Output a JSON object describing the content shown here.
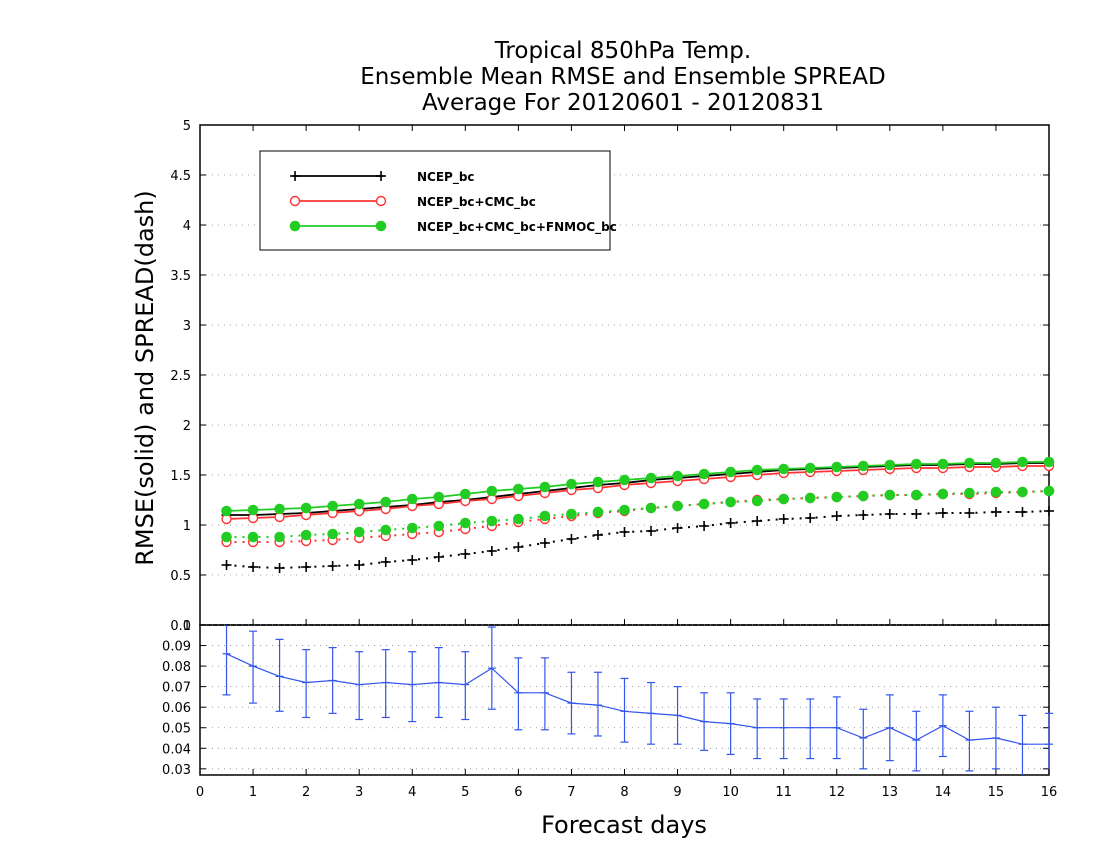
{
  "title_lines": [
    "Tropical 850hPa Temp.",
    "Ensemble Mean RMSE and Ensemble SPREAD",
    "Average For 20120601 - 20120831"
  ],
  "ylabel": "RMSE(solid) and SPREAD(dash)",
  "xlabel": "Forecast days",
  "chart_data": [
    {
      "type": "line",
      "x": [
        0.5,
        1.0,
        1.5,
        2.0,
        2.5,
        3.0,
        3.5,
        4.0,
        4.5,
        5.0,
        5.5,
        6.0,
        6.5,
        7.0,
        7.5,
        8.0,
        8.5,
        9.0,
        9.5,
        10.0,
        10.5,
        11.0,
        11.5,
        12.0,
        12.5,
        13.0,
        13.5,
        14.0,
        14.5,
        15.0,
        15.5,
        16.0
      ],
      "xlim": [
        0,
        16
      ],
      "ylim": [
        0,
        5
      ],
      "yticks": [
        0.5,
        1,
        1.5,
        2,
        2.5,
        3,
        3.5,
        4,
        4.5,
        5
      ],
      "xticks": [
        0,
        1,
        2,
        3,
        4,
        5,
        6,
        7,
        8,
        9,
        10,
        11,
        12,
        13,
        14,
        15,
        16
      ],
      "grid": true,
      "legend": {
        "position": "top-left",
        "entries": [
          "NCEP_bc",
          "NCEP_bc+CMC_bc",
          "NCEP_bc+CMC_bc+FNMOC_bc"
        ]
      },
      "series": [
        {
          "name": "NCEP_bc",
          "metric": "RMSE",
          "style": "solid",
          "marker": "plus",
          "color": "#000000",
          "values": [
            1.1,
            1.1,
            1.11,
            1.12,
            1.14,
            1.16,
            1.18,
            1.2,
            1.23,
            1.25,
            1.28,
            1.31,
            1.34,
            1.37,
            1.4,
            1.42,
            1.45,
            1.47,
            1.49,
            1.51,
            1.53,
            1.55,
            1.56,
            1.57,
            1.58,
            1.59,
            1.6,
            1.6,
            1.61,
            1.61,
            1.62,
            1.62
          ]
        },
        {
          "name": "NCEP_bc+CMC_bc",
          "metric": "RMSE",
          "style": "solid",
          "marker": "open-circle",
          "color": "#ff3333",
          "values": [
            1.06,
            1.07,
            1.08,
            1.1,
            1.12,
            1.14,
            1.16,
            1.19,
            1.21,
            1.24,
            1.26,
            1.29,
            1.32,
            1.35,
            1.37,
            1.4,
            1.42,
            1.44,
            1.46,
            1.48,
            1.5,
            1.52,
            1.53,
            1.54,
            1.55,
            1.56,
            1.57,
            1.57,
            1.58,
            1.58,
            1.59,
            1.59
          ]
        },
        {
          "name": "NCEP_bc+CMC_bc+FNMOC_bc",
          "metric": "RMSE",
          "style": "solid",
          "marker": "filled-circle",
          "color": "#22cc22",
          "values": [
            1.14,
            1.15,
            1.16,
            1.17,
            1.19,
            1.21,
            1.23,
            1.26,
            1.28,
            1.31,
            1.34,
            1.36,
            1.38,
            1.41,
            1.43,
            1.45,
            1.47,
            1.49,
            1.51,
            1.53,
            1.55,
            1.56,
            1.57,
            1.58,
            1.59,
            1.6,
            1.61,
            1.61,
            1.62,
            1.62,
            1.63,
            1.63
          ]
        },
        {
          "name": "NCEP_bc",
          "metric": "SPREAD",
          "style": "dash",
          "marker": "plus",
          "color": "#000000",
          "values": [
            0.6,
            0.58,
            0.57,
            0.58,
            0.59,
            0.6,
            0.63,
            0.65,
            0.68,
            0.71,
            0.74,
            0.78,
            0.82,
            0.86,
            0.9,
            0.93,
            0.94,
            0.97,
            0.99,
            1.02,
            1.04,
            1.06,
            1.07,
            1.09,
            1.1,
            1.11,
            1.11,
            1.12,
            1.12,
            1.13,
            1.13,
            1.14
          ]
        },
        {
          "name": "NCEP_bc+CMC_bc",
          "metric": "SPREAD",
          "style": "dash",
          "marker": "open-circle",
          "color": "#ff3333",
          "values": [
            0.83,
            0.83,
            0.83,
            0.84,
            0.85,
            0.87,
            0.89,
            0.91,
            0.93,
            0.96,
            0.99,
            1.03,
            1.06,
            1.09,
            1.12,
            1.14,
            1.17,
            1.19,
            1.21,
            1.23,
            1.25,
            1.26,
            1.27,
            1.28,
            1.29,
            1.3,
            1.3,
            1.31,
            1.31,
            1.32,
            1.33,
            1.34
          ]
        },
        {
          "name": "NCEP_bc+CMC_bc+FNMOC_bc",
          "metric": "SPREAD",
          "style": "dash",
          "marker": "filled-circle",
          "color": "#22cc22",
          "values": [
            0.88,
            0.88,
            0.88,
            0.9,
            0.91,
            0.93,
            0.95,
            0.97,
            0.99,
            1.02,
            1.04,
            1.06,
            1.09,
            1.11,
            1.13,
            1.15,
            1.17,
            1.19,
            1.21,
            1.23,
            1.24,
            1.26,
            1.27,
            1.28,
            1.29,
            1.3,
            1.3,
            1.31,
            1.32,
            1.33,
            1.33,
            1.34
          ]
        }
      ]
    },
    {
      "type": "line",
      "x": [
        0.5,
        1.0,
        1.5,
        2.0,
        2.5,
        3.0,
        3.5,
        4.0,
        4.5,
        5.0,
        5.5,
        6.0,
        6.5,
        7.0,
        7.5,
        8.0,
        8.5,
        9.0,
        9.5,
        10.0,
        10.5,
        11.0,
        11.5,
        12.0,
        12.5,
        13.0,
        13.5,
        14.0,
        14.5,
        15.0,
        15.5,
        16.0
      ],
      "xlim": [
        0,
        16
      ],
      "ylim": [
        0.027,
        0.1
      ],
      "yticks": [
        0.03,
        0.04,
        0.05,
        0.06,
        0.07,
        0.08,
        0.09,
        0.1
      ],
      "xticks": [
        0,
        1,
        2,
        3,
        4,
        5,
        6,
        7,
        8,
        9,
        10,
        11,
        12,
        13,
        14,
        15,
        16
      ],
      "grid": true,
      "series": [
        {
          "color": "#3355ee",
          "values": [
            0.086,
            0.08,
            0.075,
            0.072,
            0.073,
            0.071,
            0.072,
            0.071,
            0.072,
            0.071,
            0.079,
            0.067,
            0.067,
            0.062,
            0.061,
            0.058,
            0.057,
            0.056,
            0.053,
            0.052,
            0.05,
            0.05,
            0.05,
            0.05,
            0.045,
            0.05,
            0.044,
            0.051,
            0.044,
            0.045,
            0.042,
            0.042
          ],
          "error_low": [
            0.066,
            0.062,
            0.058,
            0.055,
            0.057,
            0.054,
            0.055,
            0.053,
            0.055,
            0.054,
            0.059,
            0.049,
            0.049,
            0.047,
            0.046,
            0.043,
            0.042,
            0.042,
            0.039,
            0.037,
            0.035,
            0.035,
            0.035,
            0.035,
            0.03,
            0.034,
            0.029,
            0.036,
            0.029,
            0.03,
            0.027,
            0.027
          ],
          "error_high": [
            0.106,
            0.097,
            0.093,
            0.088,
            0.089,
            0.087,
            0.088,
            0.087,
            0.089,
            0.087,
            0.099,
            0.084,
            0.084,
            0.077,
            0.077,
            0.074,
            0.072,
            0.07,
            0.067,
            0.067,
            0.064,
            0.064,
            0.064,
            0.065,
            0.059,
            0.066,
            0.058,
            0.066,
            0.058,
            0.06,
            0.056,
            0.057
          ]
        }
      ]
    }
  ]
}
